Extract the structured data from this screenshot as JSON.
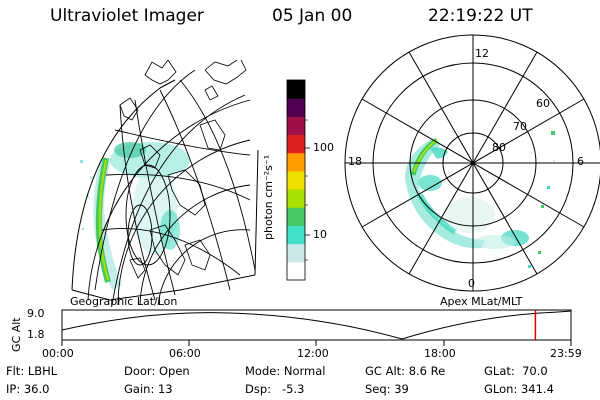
{
  "header": {
    "instrument": "Ultraviolet Imager",
    "date": "05 Jan 00",
    "time": "22:19:22 UT"
  },
  "colorbar": {
    "unit_label": "photon cm⁻²s⁻¹",
    "ticks": [
      "100",
      "10"
    ],
    "scale": "log",
    "colors": [
      "#ffffff",
      "#cce8e8",
      "#44e0c8",
      "#44c864",
      "#a8e000",
      "#f0e000",
      "#ff9c00",
      "#dc2020",
      "#a01048",
      "#500050",
      "#000000"
    ]
  },
  "geo_panel": {
    "label": "Geographic Lat/Lon"
  },
  "polar_panel": {
    "label": "Apex  MLat/MLT",
    "mlt_labels": [
      "12",
      "18",
      "6",
      "0"
    ],
    "mlat_labels": [
      "60",
      "70",
      "80"
    ]
  },
  "timeline": {
    "ylabel": "GC Alt",
    "yticks": [
      "9.0",
      "1.8"
    ],
    "xticks": [
      "00:00",
      "06:00",
      "12:00",
      "18:00",
      "23:59"
    ],
    "current_time_fraction": 0.93,
    "marker_color": "#e00000"
  },
  "info": {
    "row1": [
      {
        "label": "Flt:",
        "value": "LBHL"
      },
      {
        "label": "Door:",
        "value": "Open"
      },
      {
        "label": "Mode:",
        "value": "Normal"
      },
      {
        "label": "GC Alt:",
        "value": "8.6 Re"
      },
      {
        "label": "GLat:",
        "value": "70.0"
      }
    ],
    "row2": [
      {
        "label": "IP:",
        "value": "36.0"
      },
      {
        "label": "Gain:",
        "value": "13"
      },
      {
        "label": "Dsp:",
        "value": "-5.3"
      },
      {
        "label": "Seq:",
        "value": "39"
      },
      {
        "label": "GLon:",
        "value": "341.4"
      }
    ]
  }
}
